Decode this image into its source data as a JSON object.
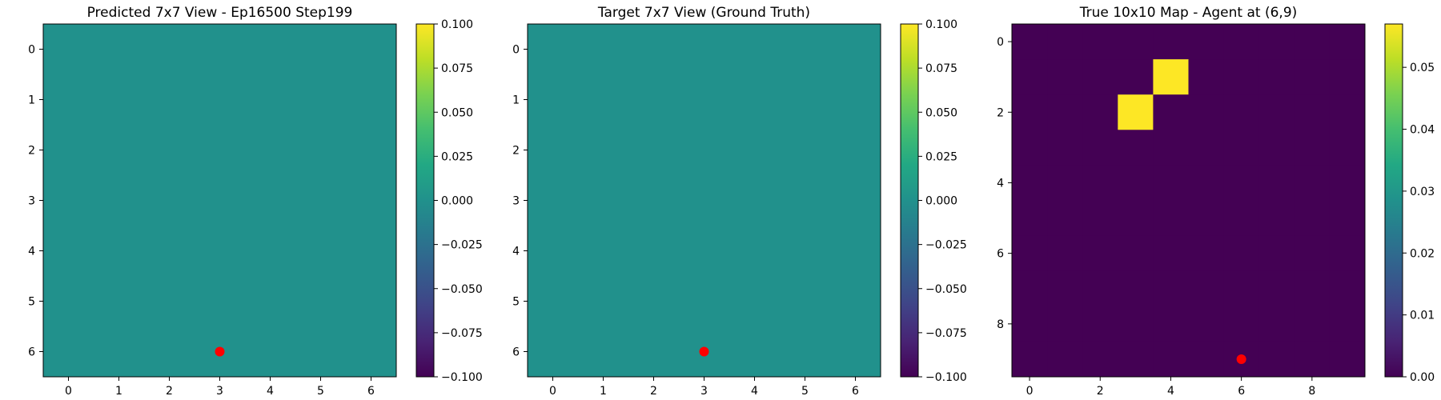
{
  "chart_data": [
    {
      "type": "heatmap",
      "title": "Predicted 7x7 View - Ep16500 Step199",
      "grid_size": [
        7,
        7
      ],
      "values": [
        [
          0,
          0,
          0,
          0,
          0,
          0,
          0
        ],
        [
          0,
          0,
          0,
          0,
          0,
          0,
          0
        ],
        [
          0,
          0,
          0,
          0,
          0,
          0,
          0
        ],
        [
          0,
          0,
          0,
          0,
          0,
          0,
          0
        ],
        [
          0,
          0,
          0,
          0,
          0,
          0,
          0
        ],
        [
          0,
          0,
          0,
          0,
          0,
          0,
          0
        ],
        [
          0,
          0,
          0,
          0,
          0,
          0,
          0
        ]
      ],
      "x_ticks": [
        "0",
        "1",
        "2",
        "3",
        "4",
        "5",
        "6"
      ],
      "y_ticks": [
        "0",
        "1",
        "2",
        "3",
        "4",
        "5",
        "6"
      ],
      "marker": {
        "x": 3,
        "y": 6,
        "color": "#ff0000"
      },
      "colormap": "viridis",
      "colorbar": {
        "vmin": -0.1,
        "vmax": 0.1,
        "ticks": [
          0.1,
          0.075,
          0.05,
          0.025,
          0.0,
          -0.025,
          -0.05,
          -0.075,
          -0.1
        ],
        "tick_labels": [
          "0.100",
          "0.075",
          "0.050",
          "0.025",
          "0.000",
          "−0.025",
          "−0.050",
          "−0.075",
          "−0.100"
        ]
      }
    },
    {
      "type": "heatmap",
      "title": "Target 7x7 View (Ground Truth)",
      "grid_size": [
        7,
        7
      ],
      "values": [
        [
          0,
          0,
          0,
          0,
          0,
          0,
          0
        ],
        [
          0,
          0,
          0,
          0,
          0,
          0,
          0
        ],
        [
          0,
          0,
          0,
          0,
          0,
          0,
          0
        ],
        [
          0,
          0,
          0,
          0,
          0,
          0,
          0
        ],
        [
          0,
          0,
          0,
          0,
          0,
          0,
          0
        ],
        [
          0,
          0,
          0,
          0,
          0,
          0,
          0
        ],
        [
          0,
          0,
          0,
          0,
          0,
          0,
          0
        ]
      ],
      "x_ticks": [
        "0",
        "1",
        "2",
        "3",
        "4",
        "5",
        "6"
      ],
      "y_ticks": [
        "0",
        "1",
        "2",
        "3",
        "4",
        "5",
        "6"
      ],
      "marker": {
        "x": 3,
        "y": 6,
        "color": "#ff0000"
      },
      "colormap": "viridis",
      "colorbar": {
        "vmin": -0.1,
        "vmax": 0.1,
        "ticks": [
          0.1,
          0.075,
          0.05,
          0.025,
          0.0,
          -0.025,
          -0.05,
          -0.075,
          -0.1
        ],
        "tick_labels": [
          "0.100",
          "0.075",
          "0.050",
          "0.025",
          "0.000",
          "−0.025",
          "−0.050",
          "−0.075",
          "−0.100"
        ]
      }
    },
    {
      "type": "heatmap",
      "title": "True 10x10 Map - Agent at (6,9)",
      "grid_size": [
        10,
        10
      ],
      "values": [
        [
          0,
          0,
          0,
          0,
          0,
          0,
          0,
          0,
          0,
          0
        ],
        [
          0,
          0,
          0,
          0,
          0.057,
          0,
          0,
          0,
          0,
          0
        ],
        [
          0,
          0,
          0,
          0.057,
          0,
          0,
          0,
          0,
          0,
          0
        ],
        [
          0,
          0,
          0,
          0,
          0,
          0,
          0,
          0,
          0,
          0
        ],
        [
          0,
          0,
          0,
          0,
          0,
          0,
          0,
          0,
          0,
          0
        ],
        [
          0,
          0,
          0,
          0,
          0,
          0,
          0,
          0,
          0,
          0
        ],
        [
          0,
          0,
          0,
          0,
          0,
          0,
          0,
          0,
          0,
          0
        ],
        [
          0,
          0,
          0,
          0,
          0,
          0,
          0,
          0,
          0,
          0
        ],
        [
          0,
          0,
          0,
          0,
          0,
          0,
          0,
          0,
          0,
          0
        ],
        [
          0,
          0,
          0,
          0,
          0,
          0,
          0,
          0,
          0,
          0
        ]
      ],
      "x_ticks": [
        "0",
        "2",
        "4",
        "6",
        "8"
      ],
      "x_tick_values": [
        0,
        2,
        4,
        6,
        8
      ],
      "y_ticks": [
        "0",
        "2",
        "4",
        "6",
        "8"
      ],
      "y_tick_values": [
        0,
        2,
        4,
        6,
        8
      ],
      "marker": {
        "x": 6,
        "y": 9,
        "color": "#ff0000"
      },
      "colormap": "viridis",
      "colorbar": {
        "vmin": 0,
        "vmax": 0.057,
        "ticks": [
          0.05,
          0.04,
          0.03,
          0.02,
          0.01,
          0.0
        ],
        "tick_labels": [
          "0.05",
          "0.04",
          "0.03",
          "0.02",
          "0.01",
          "0.00"
        ]
      }
    }
  ]
}
